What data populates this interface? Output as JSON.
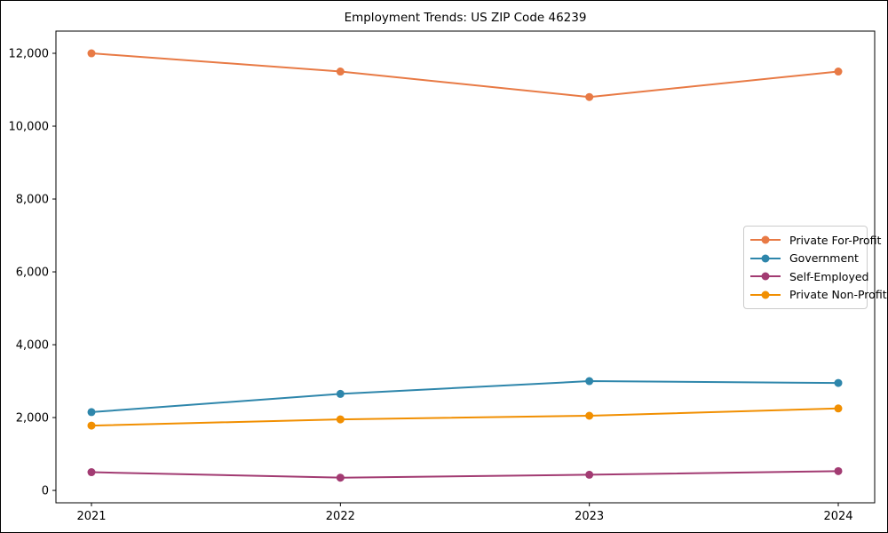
{
  "figure": {
    "title": "Employment Trends: US ZIP Code 46239",
    "background": "#ffffff",
    "border_color": "#000000"
  },
  "chart_data": {
    "type": "line",
    "title": "Employment Trends: US ZIP Code 46239",
    "x": [
      "2021",
      "2022",
      "2023",
      "2024"
    ],
    "xlabel": "",
    "ylabel": "",
    "ylim": [
      -340,
      12610
    ],
    "yticks": [
      0,
      2000,
      4000,
      6000,
      8000,
      10000,
      12000
    ],
    "ytick_labels": [
      "0",
      "2,000",
      "4,000",
      "6,000",
      "8,000",
      "10,000",
      "12,000"
    ],
    "grid": false,
    "legend_position": "middle-right",
    "marker": "circle",
    "axis_color": "#000000",
    "text_color": "#000000",
    "series": [
      {
        "name": "Private For-Profit",
        "color": "#E87A45",
        "values": [
          12000,
          11500,
          10800,
          11500
        ]
      },
      {
        "name": "Government",
        "color": "#2E86AB",
        "values": [
          2150,
          2650,
          3000,
          2950
        ]
      },
      {
        "name": "Self-Employed",
        "color": "#A23B72",
        "values": [
          500,
          350,
          430,
          530
        ]
      },
      {
        "name": "Private Non-Profit",
        "color": "#F18F01",
        "values": [
          1780,
          1950,
          2050,
          2250
        ]
      }
    ]
  }
}
